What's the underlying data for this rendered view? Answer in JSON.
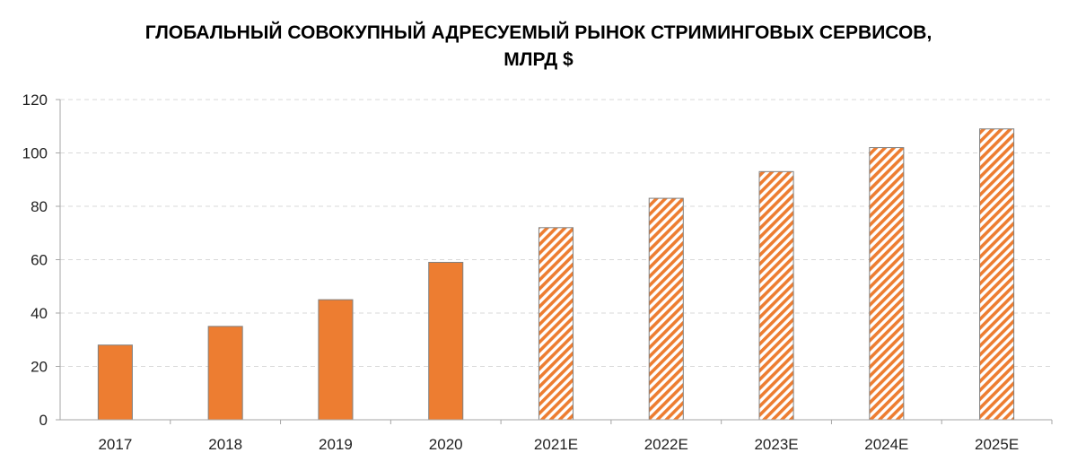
{
  "chart_data": {
    "type": "bar",
    "title_line1": "ГЛОБАЛЬНЫЙ СОВОКУПНЫЙ АДРЕСУЕМЫЙ РЫНОК СТРИМИНГОВЫХ СЕРВИСОВ,",
    "title_line2": "МЛРД $",
    "xlabel": "",
    "ylabel": "",
    "categories": [
      "2017",
      "2018",
      "2019",
      "2020",
      "2021E",
      "2022E",
      "2023E",
      "2024E",
      "2025E"
    ],
    "values": [
      28,
      35,
      45,
      59,
      72,
      83,
      93,
      102,
      109
    ],
    "forecast": [
      false,
      false,
      false,
      false,
      true,
      true,
      true,
      true,
      true
    ],
    "ylim": [
      0,
      120
    ],
    "yticks": [
      "0",
      "20",
      "40",
      "60",
      "80",
      "100",
      "120"
    ],
    "grid": true,
    "colors": {
      "bar": "#ED7D31",
      "bar_outline": "#808080",
      "grid": "#D9D9D9",
      "axis": "#A6A6A6"
    }
  }
}
